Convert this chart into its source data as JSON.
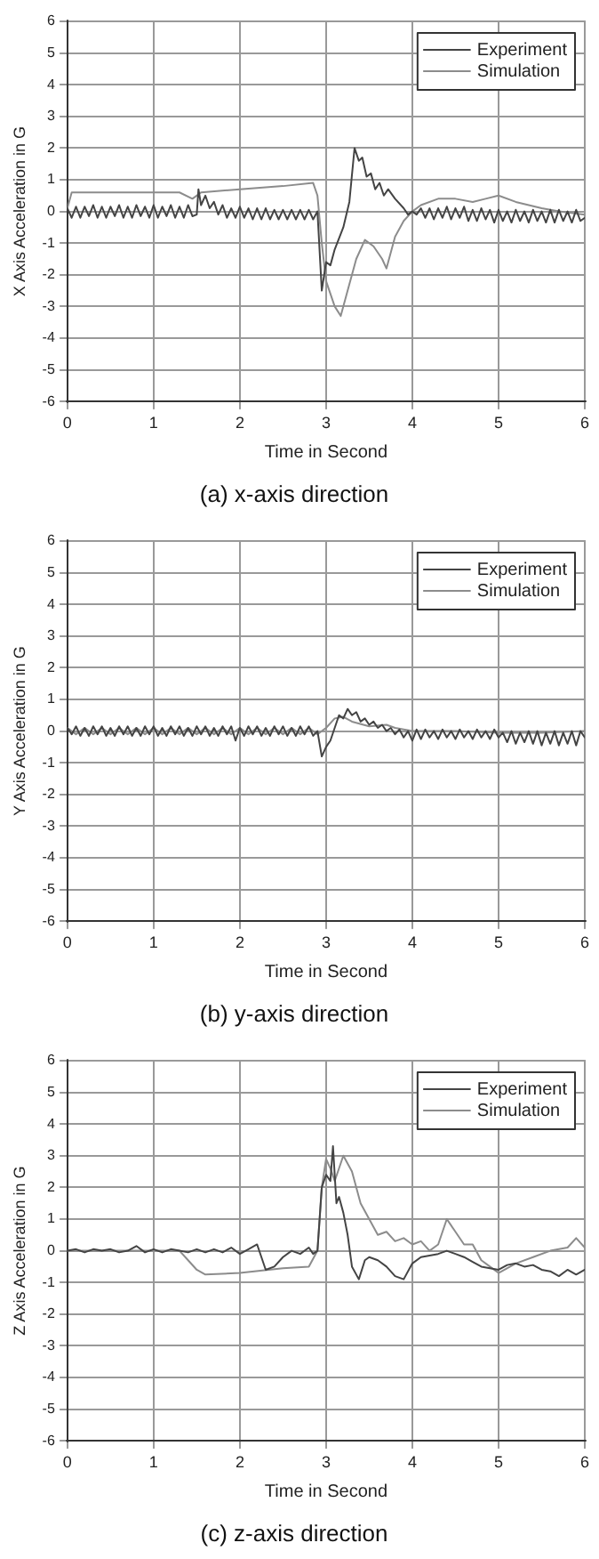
{
  "chart_data": [
    {
      "type": "line",
      "title": "(a) x-axis direction",
      "xlabel": "Time in Second",
      "ylabel": "X Axis Acceleration in G",
      "xlim": [
        0,
        6
      ],
      "xticks": [
        0,
        1,
        2,
        3,
        4,
        5,
        6
      ],
      "ylim": [
        -6,
        6
      ],
      "yticks": [
        -6,
        -5,
        -4,
        -3,
        -2,
        -1,
        0,
        1,
        2,
        3,
        4,
        5,
        6
      ],
      "grid": true,
      "legend": "top right",
      "series": [
        {
          "name": "Experiment",
          "color": "#444444",
          "x": [
            0,
            0.05,
            0.1,
            0.15,
            0.2,
            0.25,
            0.3,
            0.35,
            0.4,
            0.45,
            0.5,
            0.55,
            0.6,
            0.65,
            0.7,
            0.75,
            0.8,
            0.85,
            0.9,
            0.95,
            1.0,
            1.05,
            1.1,
            1.15,
            1.2,
            1.25,
            1.3,
            1.35,
            1.4,
            1.45,
            1.5,
            1.52,
            1.55,
            1.6,
            1.65,
            1.7,
            1.75,
            1.8,
            1.85,
            1.9,
            1.95,
            2.0,
            2.05,
            2.1,
            2.15,
            2.2,
            2.25,
            2.3,
            2.35,
            2.4,
            2.45,
            2.5,
            2.55,
            2.6,
            2.65,
            2.7,
            2.75,
            2.8,
            2.85,
            2.9,
            2.95,
            3.0,
            3.05,
            3.1,
            3.2,
            3.27,
            3.33,
            3.38,
            3.42,
            3.47,
            3.52,
            3.57,
            3.62,
            3.67,
            3.72,
            3.8,
            3.9,
            3.95,
            4.0,
            4.05,
            4.1,
            4.15,
            4.2,
            4.25,
            4.3,
            4.35,
            4.4,
            4.45,
            4.5,
            4.55,
            4.6,
            4.65,
            4.7,
            4.75,
            4.8,
            4.85,
            4.9,
            4.95,
            5.0,
            5.05,
            5.1,
            5.15,
            5.2,
            5.25,
            5.3,
            5.35,
            5.4,
            5.45,
            5.5,
            5.55,
            5.6,
            5.65,
            5.7,
            5.75,
            5.8,
            5.85,
            5.9,
            5.95,
            6.0
          ],
          "values": [
            0.1,
            -0.2,
            0.15,
            -0.2,
            0.15,
            -0.15,
            0.2,
            -0.2,
            0.15,
            -0.2,
            0.15,
            -0.15,
            0.2,
            -0.2,
            0.15,
            -0.2,
            0.2,
            -0.15,
            0.15,
            -0.2,
            0.2,
            -0.2,
            0.15,
            -0.15,
            0.2,
            -0.2,
            0.15,
            -0.2,
            0.2,
            -0.15,
            -0.1,
            0.7,
            0.2,
            0.5,
            0.1,
            0.3,
            -0.1,
            0.2,
            -0.2,
            0.1,
            -0.2,
            0.15,
            -0.2,
            0.1,
            -0.25,
            0.1,
            -0.25,
            0.1,
            -0.25,
            0.05,
            -0.25,
            0.05,
            -0.25,
            0.05,
            -0.25,
            0.05,
            -0.25,
            0.05,
            -0.25,
            0.0,
            -2.5,
            -1.6,
            -1.7,
            -1.2,
            -0.5,
            0.3,
            2.0,
            1.6,
            1.7,
            1.1,
            1.2,
            0.7,
            0.9,
            0.5,
            0.7,
            0.4,
            0.1,
            -0.1,
            0.0,
            -0.1,
            0.1,
            -0.2,
            0.1,
            -0.25,
            0.1,
            -0.2,
            0.15,
            -0.25,
            0.1,
            -0.2,
            0.15,
            -0.3,
            0.05,
            -0.3,
            0.1,
            -0.25,
            0.05,
            -0.35,
            0.05,
            -0.3,
            0.0,
            -0.35,
            0.05,
            -0.3,
            0.0,
            -0.35,
            0.05,
            -0.3,
            0.0,
            -0.35,
            0.05,
            -0.35,
            0.05,
            -0.3,
            0.0,
            -0.35,
            0.05,
            -0.3,
            -0.2
          ]
        },
        {
          "name": "Simulation",
          "color": "#8c8c8c",
          "x": [
            0,
            0.05,
            0.5,
            1.0,
            1.3,
            1.45,
            1.55,
            2.0,
            2.5,
            2.85,
            2.9,
            2.95,
            3.0,
            3.05,
            3.1,
            3.17,
            3.25,
            3.35,
            3.45,
            3.55,
            3.65,
            3.7,
            3.8,
            3.9,
            4.0,
            4.1,
            4.3,
            4.5,
            4.7,
            4.85,
            5.0,
            5.2,
            5.5,
            5.7,
            6.0
          ],
          "values": [
            0.1,
            0.6,
            0.6,
            0.6,
            0.6,
            0.4,
            0.6,
            0.7,
            0.8,
            0.9,
            0.5,
            -1.0,
            -2.2,
            -2.6,
            -3.0,
            -3.3,
            -2.5,
            -1.5,
            -0.9,
            -1.1,
            -1.5,
            -1.8,
            -0.8,
            -0.3,
            0.0,
            0.2,
            0.4,
            0.4,
            0.3,
            0.4,
            0.5,
            0.3,
            0.1,
            0.0,
            -0.1
          ]
        }
      ]
    },
    {
      "type": "line",
      "title": "(b) y-axis direction",
      "xlabel": "Time in Second",
      "ylabel": "Y Axis Acceleration in G",
      "xlim": [
        0,
        6
      ],
      "xticks": [
        0,
        1,
        2,
        3,
        4,
        5,
        6
      ],
      "ylim": [
        -6,
        6
      ],
      "yticks": [
        -6,
        -5,
        -4,
        -3,
        -2,
        -1,
        0,
        1,
        2,
        3,
        4,
        5,
        6
      ],
      "grid": true,
      "legend": "top right",
      "series": [
        {
          "name": "Experiment",
          "color": "#444444",
          "x": [
            0,
            0.05,
            0.1,
            0.15,
            0.2,
            0.25,
            0.3,
            0.35,
            0.4,
            0.45,
            0.5,
            0.55,
            0.6,
            0.65,
            0.7,
            0.75,
            0.8,
            0.85,
            0.9,
            0.95,
            1.0,
            1.05,
            1.1,
            1.15,
            1.2,
            1.25,
            1.3,
            1.35,
            1.4,
            1.45,
            1.5,
            1.55,
            1.6,
            1.65,
            1.7,
            1.75,
            1.8,
            1.85,
            1.9,
            1.95,
            2.0,
            2.05,
            2.1,
            2.15,
            2.2,
            2.25,
            2.3,
            2.35,
            2.4,
            2.45,
            2.5,
            2.55,
            2.6,
            2.65,
            2.7,
            2.75,
            2.8,
            2.85,
            2.9,
            2.95,
            3.0,
            3.05,
            3.1,
            3.15,
            3.2,
            3.25,
            3.3,
            3.35,
            3.4,
            3.45,
            3.5,
            3.55,
            3.6,
            3.65,
            3.7,
            3.75,
            3.8,
            3.85,
            3.9,
            3.95,
            4.0,
            4.05,
            4.1,
            4.15,
            4.2,
            4.25,
            4.3,
            4.35,
            4.4,
            4.45,
            4.5,
            4.55,
            4.6,
            4.65,
            4.7,
            4.75,
            4.8,
            4.85,
            4.9,
            4.95,
            5.0,
            5.05,
            5.1,
            5.15,
            5.2,
            5.25,
            5.3,
            5.35,
            5.4,
            5.45,
            5.5,
            5.55,
            5.6,
            5.65,
            5.7,
            5.75,
            5.8,
            5.85,
            5.9,
            5.95,
            6.0
          ],
          "values": [
            0.1,
            -0.1,
            0.15,
            -0.15,
            0.1,
            -0.15,
            0.15,
            -0.1,
            0.15,
            -0.15,
            0.1,
            -0.15,
            0.15,
            -0.1,
            0.15,
            -0.15,
            0.1,
            -0.15,
            0.15,
            -0.1,
            0.15,
            -0.15,
            0.1,
            -0.15,
            0.15,
            -0.1,
            0.15,
            -0.15,
            0.1,
            -0.15,
            0.15,
            -0.1,
            0.15,
            -0.15,
            0.1,
            -0.15,
            0.15,
            -0.1,
            0.15,
            -0.3,
            0.1,
            -0.15,
            0.15,
            -0.1,
            0.15,
            -0.15,
            0.1,
            -0.15,
            0.15,
            -0.1,
            0.15,
            -0.15,
            0.1,
            -0.15,
            0.15,
            -0.1,
            0.15,
            -0.15,
            0.0,
            -0.8,
            -0.5,
            -0.3,
            0.1,
            0.5,
            0.4,
            0.7,
            0.5,
            0.6,
            0.3,
            0.4,
            0.2,
            0.3,
            0.1,
            0.2,
            0.0,
            0.1,
            -0.1,
            0.05,
            -0.2,
            0.0,
            -0.3,
            0.05,
            -0.25,
            0.05,
            -0.2,
            0.0,
            -0.25,
            0.05,
            -0.2,
            0.0,
            -0.25,
            0.05,
            -0.2,
            0.0,
            -0.25,
            0.05,
            -0.2,
            0.0,
            -0.25,
            0.05,
            -0.2,
            -0.05,
            -0.35,
            0.0,
            -0.4,
            -0.05,
            -0.35,
            0.0,
            -0.4,
            0.0,
            -0.45,
            -0.05,
            -0.4,
            0.0,
            -0.45,
            -0.05,
            -0.4,
            0.0,
            -0.45,
            0.0,
            -0.2
          ]
        },
        {
          "name": "Simulation",
          "color": "#8c8c8c",
          "x": [
            0,
            0.1,
            0.2,
            0.3,
            0.4,
            0.5,
            0.6,
            0.7,
            0.8,
            0.9,
            1.0,
            1.1,
            1.2,
            1.3,
            1.4,
            1.5,
            1.6,
            1.7,
            1.8,
            1.9,
            2.0,
            2.1,
            2.2,
            2.3,
            2.4,
            2.5,
            2.6,
            2.7,
            2.8,
            2.9,
            3.0,
            3.1,
            3.2,
            3.3,
            3.5,
            3.7,
            3.8,
            4.0,
            4.5,
            5.0,
            5.5,
            6.0
          ],
          "values": [
            0.1,
            -0.1,
            0.1,
            -0.1,
            0.1,
            -0.1,
            0.1,
            -0.1,
            0.1,
            -0.1,
            0.1,
            -0.1,
            0.1,
            -0.1,
            0.1,
            -0.1,
            0.1,
            -0.1,
            0.1,
            -0.1,
            0.1,
            -0.1,
            0.1,
            -0.1,
            0.1,
            -0.1,
            0.1,
            -0.1,
            0.1,
            -0.1,
            0.1,
            0.4,
            0.45,
            0.3,
            0.15,
            0.2,
            0.1,
            0.0,
            0.0,
            -0.05,
            -0.05,
            0.0
          ]
        }
      ]
    },
    {
      "type": "line",
      "title": "(c) z-axis direction",
      "xlabel": "Time in Second",
      "ylabel": "Z Axis Acceleration in G",
      "xlim": [
        0,
        6
      ],
      "xticks": [
        0,
        1,
        2,
        3,
        4,
        5,
        6
      ],
      "ylim": [
        -6,
        6
      ],
      "yticks": [
        -6,
        -5,
        -4,
        -3,
        -2,
        -1,
        0,
        1,
        2,
        3,
        4,
        5,
        6
      ],
      "grid": true,
      "legend": "top right",
      "series": [
        {
          "name": "Experiment",
          "color": "#444444",
          "x": [
            0,
            0.1,
            0.2,
            0.3,
            0.4,
            0.5,
            0.6,
            0.7,
            0.8,
            0.9,
            1.0,
            1.1,
            1.2,
            1.3,
            1.4,
            1.5,
            1.6,
            1.7,
            1.8,
            1.9,
            2.0,
            2.1,
            2.2,
            2.25,
            2.3,
            2.4,
            2.5,
            2.6,
            2.7,
            2.8,
            2.85,
            2.9,
            2.95,
            3.0,
            3.05,
            3.08,
            3.12,
            3.15,
            3.2,
            3.25,
            3.3,
            3.38,
            3.45,
            3.5,
            3.6,
            3.7,
            3.8,
            3.9,
            4.0,
            4.1,
            4.2,
            4.3,
            4.4,
            4.5,
            4.6,
            4.7,
            4.8,
            4.9,
            5.0,
            5.1,
            5.2,
            5.3,
            5.4,
            5.5,
            5.6,
            5.7,
            5.8,
            5.9,
            6.0
          ],
          "values": [
            0,
            0.05,
            -0.05,
            0.05,
            0.0,
            0.05,
            -0.05,
            0.0,
            0.15,
            -0.05,
            0.05,
            -0.05,
            0.05,
            0.0,
            -0.05,
            0.05,
            -0.05,
            0.05,
            -0.05,
            0.1,
            -0.1,
            0.05,
            0.2,
            -0.2,
            -0.6,
            -0.5,
            -0.2,
            0.0,
            -0.1,
            0.1,
            -0.1,
            0.0,
            2.0,
            2.4,
            2.2,
            3.3,
            1.5,
            1.7,
            1.2,
            0.5,
            -0.5,
            -0.9,
            -0.3,
            -0.2,
            -0.3,
            -0.5,
            -0.8,
            -0.9,
            -0.4,
            -0.2,
            -0.15,
            -0.1,
            0.0,
            -0.1,
            -0.2,
            -0.35,
            -0.5,
            -0.55,
            -0.6,
            -0.45,
            -0.4,
            -0.5,
            -0.45,
            -0.6,
            -0.65,
            -0.8,
            -0.6,
            -0.75,
            -0.6
          ]
        },
        {
          "name": "Simulation",
          "color": "#8c8c8c",
          "x": [
            0,
            0.5,
            1.0,
            1.3,
            1.4,
            1.5,
            1.6,
            2.0,
            2.5,
            2.8,
            2.9,
            2.95,
            3.0,
            3.05,
            3.1,
            3.2,
            3.3,
            3.4,
            3.5,
            3.6,
            3.7,
            3.8,
            3.9,
            4.0,
            4.1,
            4.2,
            4.3,
            4.4,
            4.5,
            4.6,
            4.7,
            4.8,
            4.9,
            5.0,
            5.2,
            5.4,
            5.6,
            5.8,
            5.9,
            6.0
          ],
          "values": [
            0,
            0.0,
            0.0,
            0.0,
            -0.3,
            -0.6,
            -0.75,
            -0.7,
            -0.55,
            -0.5,
            0.0,
            2.0,
            2.9,
            2.6,
            2.2,
            3.0,
            2.5,
            1.5,
            1.0,
            0.5,
            0.6,
            0.3,
            0.4,
            0.2,
            0.3,
            0.0,
            0.2,
            1.0,
            0.6,
            0.2,
            0.2,
            -0.3,
            -0.5,
            -0.7,
            -0.4,
            -0.2,
            0.0,
            0.1,
            0.4,
            0.1
          ]
        }
      ]
    }
  ]
}
